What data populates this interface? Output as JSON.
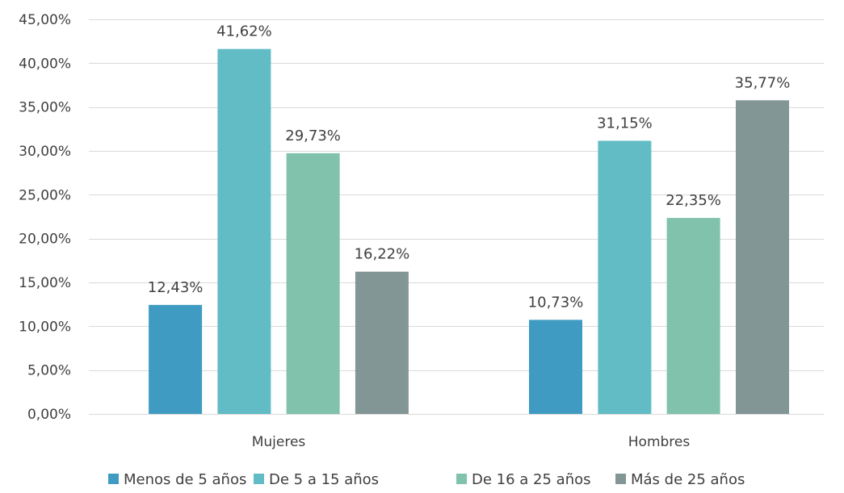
{
  "chart_data": {
    "type": "bar",
    "title": "",
    "xlabel": "",
    "ylabel": "",
    "categories": [
      "Mujeres",
      "Hombres"
    ],
    "series": [
      {
        "name": "Menos de 5 años",
        "color": "#3f9bc1",
        "values": [
          12.43,
          10.73
        ],
        "labels": [
          "12,43%",
          "10,73%"
        ]
      },
      {
        "name": "De 5 a 15 años",
        "color": "#62bcc6",
        "values": [
          41.62,
          31.15
        ],
        "labels": [
          "41,62%",
          "31,15%"
        ]
      },
      {
        "name": "De 16 a 25 años",
        "color": "#80c2ab",
        "values": [
          29.73,
          22.35
        ],
        "labels": [
          "29,73%",
          "22,35%"
        ]
      },
      {
        "name": "Más de 25 años",
        "color": "#839696",
        "values": [
          16.22,
          35.77
        ],
        "labels": [
          "16,22%",
          "35,77%"
        ]
      }
    ],
    "ylim": [
      0,
      45
    ],
    "yticks": [
      0,
      5,
      10,
      15,
      20,
      25,
      30,
      35,
      40,
      45
    ],
    "ytick_labels": [
      "0,00%",
      "5,00%",
      "10,00%",
      "15,00%",
      "20,00%",
      "25,00%",
      "30,00%",
      "35,00%",
      "40,00%",
      "45,00%"
    ],
    "grid": true,
    "legend_position": "bottom",
    "gridline_color": "#d9d9d9"
  }
}
